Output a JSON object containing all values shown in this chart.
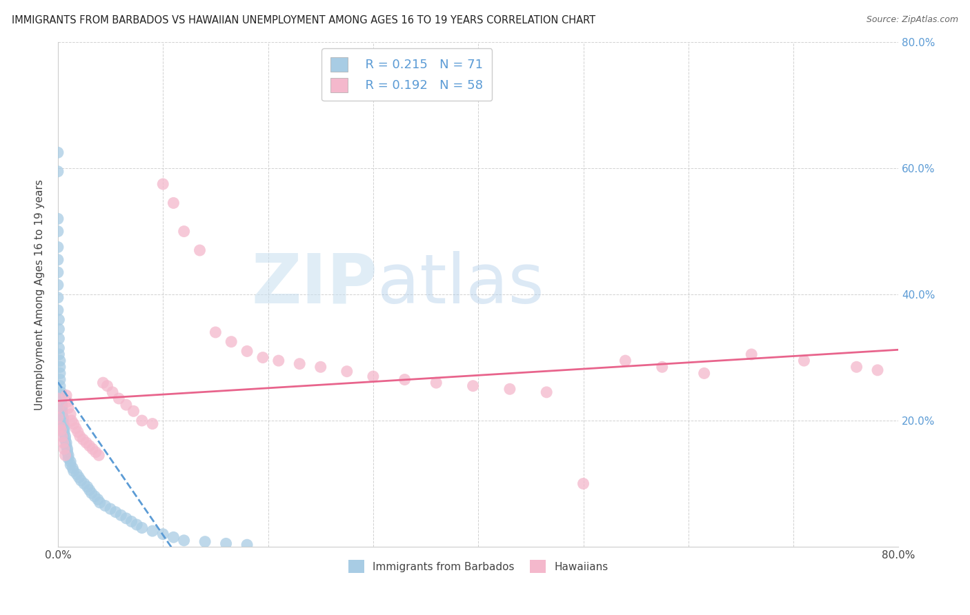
{
  "title": "IMMIGRANTS FROM BARBADOS VS HAWAIIAN UNEMPLOYMENT AMONG AGES 16 TO 19 YEARS CORRELATION CHART",
  "source": "Source: ZipAtlas.com",
  "ylabel": "Unemployment Among Ages 16 to 19 years",
  "xlim": [
    0.0,
    0.8
  ],
  "ylim": [
    0.0,
    0.8
  ],
  "yticks": [
    0.0,
    0.2,
    0.4,
    0.6,
    0.8
  ],
  "ytick_labels": [
    "",
    "20.0%",
    "40.0%",
    "60.0%",
    "80.0%"
  ],
  "xticks": [
    0.0,
    0.1,
    0.2,
    0.3,
    0.4,
    0.5,
    0.6,
    0.7,
    0.8
  ],
  "xtick_labels": [
    "0.0%",
    "",
    "",
    "",
    "",
    "",
    "",
    "",
    "80.0%"
  ],
  "legend_label1": "Immigrants from Barbados",
  "legend_label2": "Hawaiians",
  "R1": 0.215,
  "N1": 71,
  "R2": 0.192,
  "N2": 58,
  "color_blue": "#a8cce4",
  "color_pink": "#f4b8cc",
  "color_trend_blue": "#5b9bd5",
  "color_trend_pink": "#e8648c",
  "background_color": "#ffffff",
  "watermark_zip": "ZIP",
  "watermark_atlas": "atlas",
  "blue_scatter_x": [
    0.0,
    0.0,
    0.0,
    0.0,
    0.0,
    0.0,
    0.0,
    0.0,
    0.0,
    0.0,
    0.001,
    0.001,
    0.001,
    0.001,
    0.001,
    0.002,
    0.002,
    0.002,
    0.002,
    0.002,
    0.003,
    0.003,
    0.003,
    0.003,
    0.004,
    0.004,
    0.004,
    0.004,
    0.005,
    0.005,
    0.005,
    0.006,
    0.006,
    0.006,
    0.007,
    0.007,
    0.008,
    0.008,
    0.009,
    0.009,
    0.01,
    0.01,
    0.012,
    0.012,
    0.014,
    0.015,
    0.018,
    0.02,
    0.022,
    0.025,
    0.028,
    0.03,
    0.032,
    0.035,
    0.038,
    0.04,
    0.045,
    0.05,
    0.055,
    0.06,
    0.065,
    0.07,
    0.075,
    0.08,
    0.09,
    0.1,
    0.11,
    0.12,
    0.14,
    0.16,
    0.18
  ],
  "blue_scatter_y": [
    0.625,
    0.595,
    0.52,
    0.5,
    0.475,
    0.455,
    0.435,
    0.415,
    0.395,
    0.375,
    0.36,
    0.345,
    0.33,
    0.315,
    0.305,
    0.295,
    0.285,
    0.275,
    0.265,
    0.255,
    0.245,
    0.24,
    0.235,
    0.23,
    0.225,
    0.22,
    0.215,
    0.21,
    0.205,
    0.2,
    0.195,
    0.19,
    0.185,
    0.18,
    0.175,
    0.17,
    0.165,
    0.16,
    0.155,
    0.15,
    0.145,
    0.14,
    0.135,
    0.13,
    0.125,
    0.12,
    0.115,
    0.11,
    0.105,
    0.1,
    0.095,
    0.09,
    0.085,
    0.08,
    0.075,
    0.07,
    0.065,
    0.06,
    0.055,
    0.05,
    0.045,
    0.04,
    0.035,
    0.03,
    0.025,
    0.02,
    0.015,
    0.01,
    0.008,
    0.005,
    0.003
  ],
  "pink_scatter_x": [
    0.0,
    0.0,
    0.0,
    0.002,
    0.003,
    0.004,
    0.005,
    0.006,
    0.007,
    0.008,
    0.009,
    0.01,
    0.012,
    0.013,
    0.015,
    0.017,
    0.019,
    0.021,
    0.024,
    0.027,
    0.03,
    0.033,
    0.036,
    0.039,
    0.043,
    0.047,
    0.052,
    0.058,
    0.065,
    0.072,
    0.08,
    0.09,
    0.1,
    0.11,
    0.12,
    0.135,
    0.15,
    0.165,
    0.18,
    0.195,
    0.21,
    0.23,
    0.25,
    0.275,
    0.3,
    0.33,
    0.36,
    0.395,
    0.43,
    0.465,
    0.5,
    0.54,
    0.575,
    0.615,
    0.66,
    0.71,
    0.76,
    0.78
  ],
  "pink_scatter_y": [
    0.235,
    0.22,
    0.205,
    0.19,
    0.185,
    0.175,
    0.165,
    0.155,
    0.145,
    0.24,
    0.23,
    0.22,
    0.21,
    0.2,
    0.195,
    0.188,
    0.182,
    0.175,
    0.17,
    0.165,
    0.16,
    0.155,
    0.15,
    0.145,
    0.26,
    0.255,
    0.245,
    0.235,
    0.225,
    0.215,
    0.2,
    0.195,
    0.575,
    0.545,
    0.5,
    0.47,
    0.34,
    0.325,
    0.31,
    0.3,
    0.295,
    0.29,
    0.285,
    0.278,
    0.27,
    0.265,
    0.26,
    0.255,
    0.25,
    0.245,
    0.1,
    0.295,
    0.285,
    0.275,
    0.305,
    0.295,
    0.285,
    0.28
  ]
}
